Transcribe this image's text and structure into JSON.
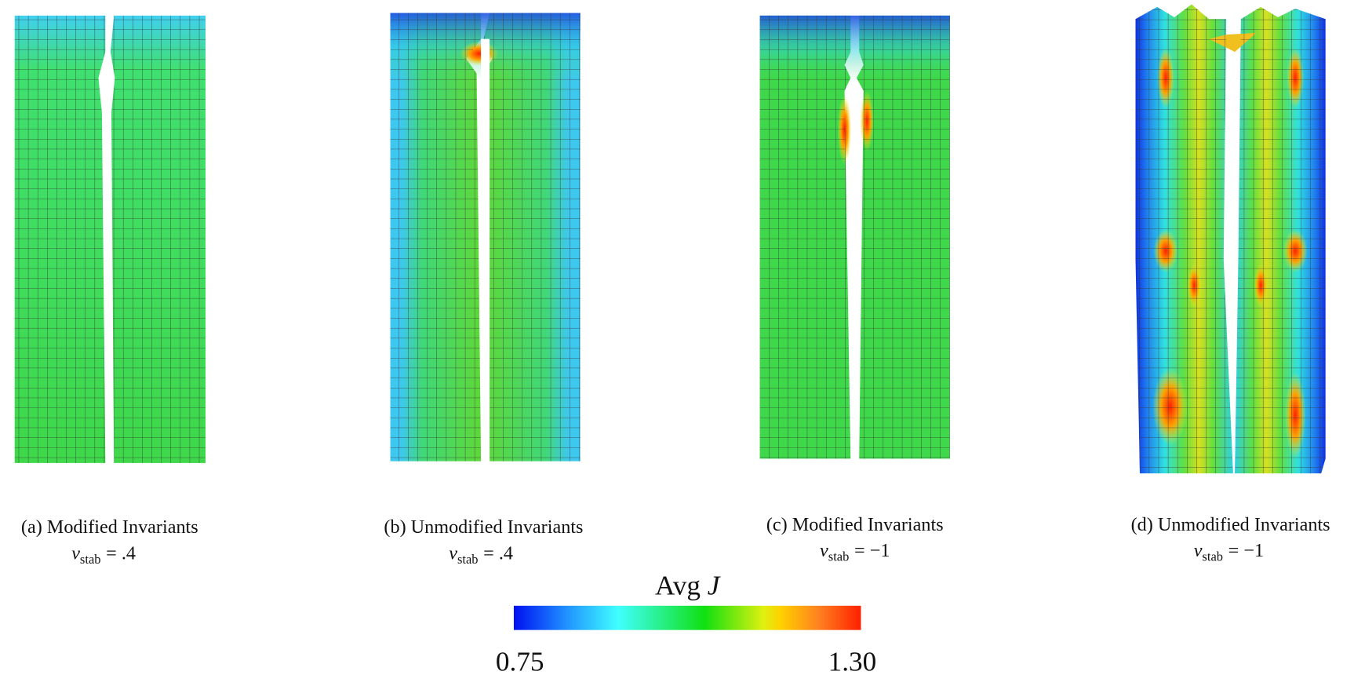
{
  "panels": [
    {
      "label": "(a) Modified Invariants",
      "symbol": "ν",
      "subscript": "stab",
      "equation_rhs": "= .4"
    },
    {
      "label": "(b) Unmodified Invariants",
      "symbol": "ν",
      "subscript": "stab",
      "equation_rhs": "= .4"
    },
    {
      "label": "(c) Modified Invariants",
      "symbol": "ν",
      "subscript": "stab",
      "equation_rhs": "= −1"
    },
    {
      "label": "(d) Unmodified Invariants",
      "symbol": "ν",
      "subscript": "stab",
      "equation_rhs": "= −1"
    }
  ],
  "colorbar": {
    "title": "Avg",
    "variable": "J",
    "min_label": "0.75",
    "max_label": "1.30"
  }
}
